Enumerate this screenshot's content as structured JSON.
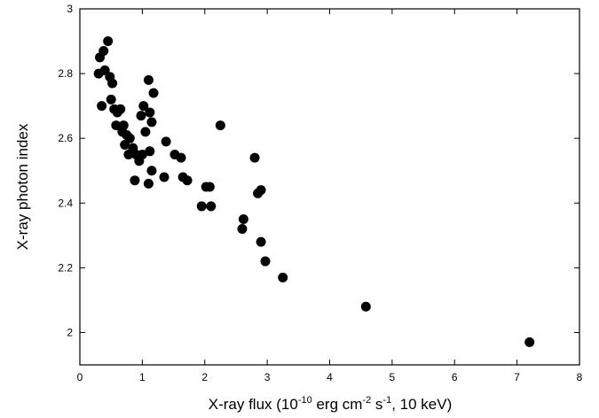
{
  "chart_data": {
    "type": "scatter",
    "xlabel": {
      "prefix": "X-ray flux (10",
      "exp1": "-10",
      "mid1": " erg cm",
      "exp2": "-2",
      "mid2": " s",
      "exp3": "-1",
      "suffix": ", 10 keV)"
    },
    "ylabel": "X-ray photon index",
    "xlim": [
      0,
      8
    ],
    "ylim": [
      1.9,
      3.0
    ],
    "x_ticks": [
      0,
      1,
      2,
      3,
      4,
      5,
      6,
      7,
      8
    ],
    "y_ticks": [
      2,
      2.2,
      2.4,
      2.6,
      2.8,
      3
    ],
    "y_tick_labels": [
      "2",
      "2.2",
      "2.4",
      "2.6",
      "2.8",
      "3"
    ],
    "grid": false,
    "marker_color": "#000000",
    "series": [
      {
        "points": [
          [
            0.45,
            2.9
          ],
          [
            0.38,
            2.87
          ],
          [
            0.32,
            2.85
          ],
          [
            0.4,
            2.81
          ],
          [
            0.3,
            2.8
          ],
          [
            0.48,
            2.79
          ],
          [
            0.52,
            2.77
          ],
          [
            0.35,
            2.7
          ],
          [
            0.5,
            2.72
          ],
          [
            0.55,
            2.69
          ],
          [
            0.6,
            2.68
          ],
          [
            0.65,
            2.69
          ],
          [
            0.58,
            2.64
          ],
          [
            0.7,
            2.64
          ],
          [
            0.68,
            2.62
          ],
          [
            0.75,
            2.61
          ],
          [
            0.8,
            2.6
          ],
          [
            0.72,
            2.58
          ],
          [
            0.85,
            2.57
          ],
          [
            0.9,
            2.55
          ],
          [
            0.78,
            2.55
          ],
          [
            0.95,
            2.53
          ],
          [
            1.0,
            2.55
          ],
          [
            0.88,
            2.47
          ],
          [
            1.1,
            2.78
          ],
          [
            1.18,
            2.74
          ],
          [
            0.98,
            2.67
          ],
          [
            1.02,
            2.7
          ],
          [
            1.12,
            2.68
          ],
          [
            1.15,
            2.65
          ],
          [
            1.05,
            2.62
          ],
          [
            1.12,
            2.56
          ],
          [
            1.15,
            2.5
          ],
          [
            1.1,
            2.46
          ],
          [
            1.35,
            2.48
          ],
          [
            1.38,
            2.59
          ],
          [
            1.52,
            2.55
          ],
          [
            1.62,
            2.54
          ],
          [
            1.65,
            2.48
          ],
          [
            1.72,
            2.47
          ],
          [
            1.95,
            2.39
          ],
          [
            2.02,
            2.45
          ],
          [
            2.08,
            2.45
          ],
          [
            2.1,
            2.39
          ],
          [
            2.25,
            2.64
          ],
          [
            2.6,
            2.32
          ],
          [
            2.62,
            2.35
          ],
          [
            2.8,
            2.54
          ],
          [
            2.85,
            2.43
          ],
          [
            2.9,
            2.44
          ],
          [
            2.9,
            2.28
          ],
          [
            2.97,
            2.22
          ],
          [
            3.25,
            2.17
          ],
          [
            4.58,
            2.08
          ],
          [
            7.2,
            1.97
          ]
        ]
      }
    ]
  }
}
